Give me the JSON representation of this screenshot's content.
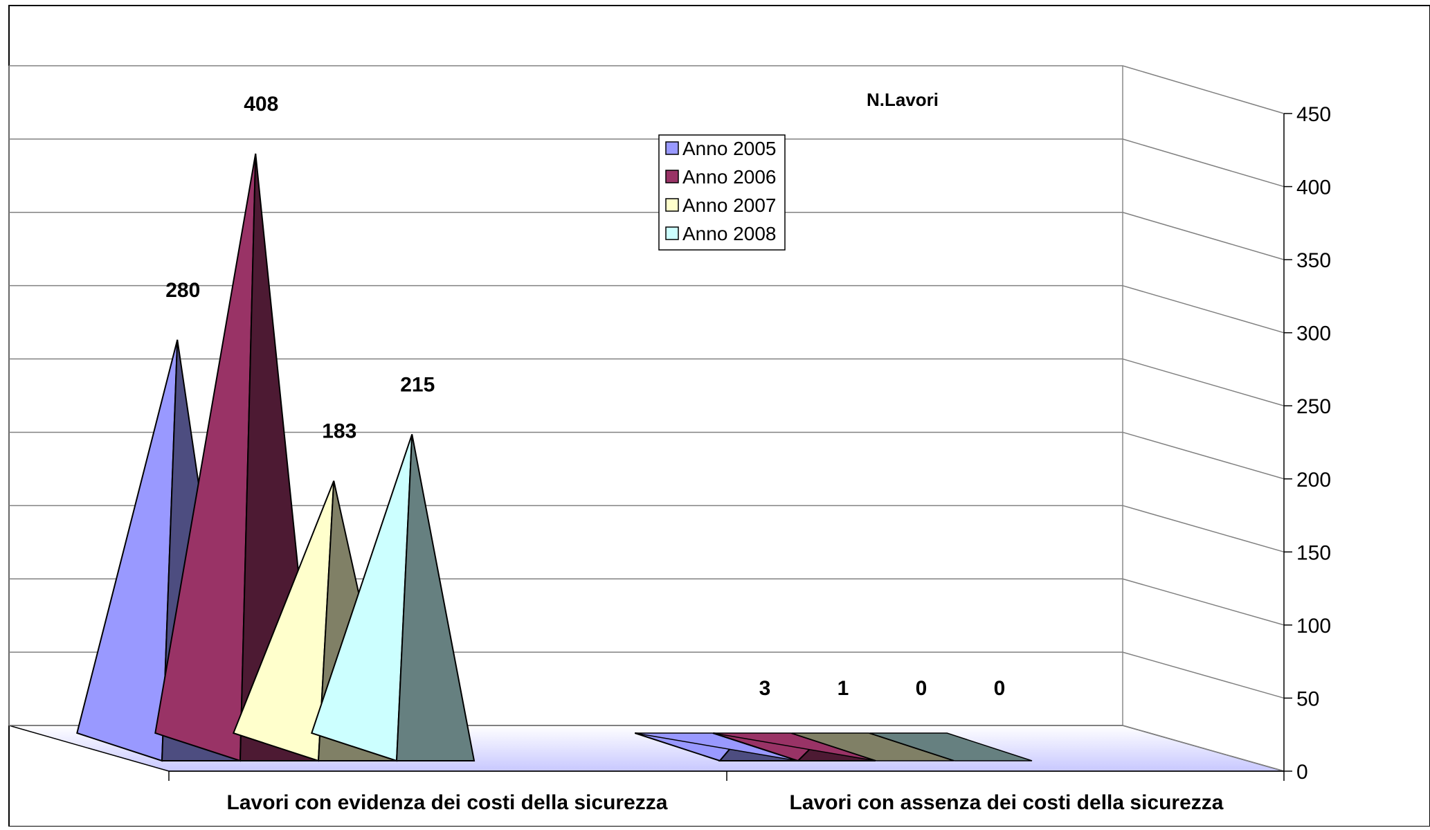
{
  "chart_data": {
    "type": "bar",
    "style": "3d-pyramid",
    "title": "N.Lavori",
    "categories": [
      "Lavori con evidenza dei costi della sicurezza",
      "Lavori con assenza dei costi della sicurezza"
    ],
    "series": [
      {
        "name": "Anno 2005",
        "values": [
          280,
          3
        ],
        "color": "#9999FF",
        "shade": "#4D4D80"
      },
      {
        "name": "Anno 2006",
        "values": [
          408,
          1
        ],
        "color": "#993366",
        "shade": "#4D1A33"
      },
      {
        "name": "Anno 2007",
        "values": [
          183,
          0
        ],
        "color": "#FFFFCC",
        "shade": "#808066"
      },
      {
        "name": "Anno 2008",
        "values": [
          215,
          0
        ],
        "color": "#CCFFFF",
        "shade": "#668080"
      }
    ],
    "ylim": [
      0,
      450
    ],
    "yticks": [
      0,
      50,
      100,
      150,
      200,
      250,
      300,
      350,
      400,
      450
    ],
    "y_axis_side": "right",
    "grid": true,
    "legend_position": "top-center",
    "floor_color": "#CCCCFF"
  }
}
